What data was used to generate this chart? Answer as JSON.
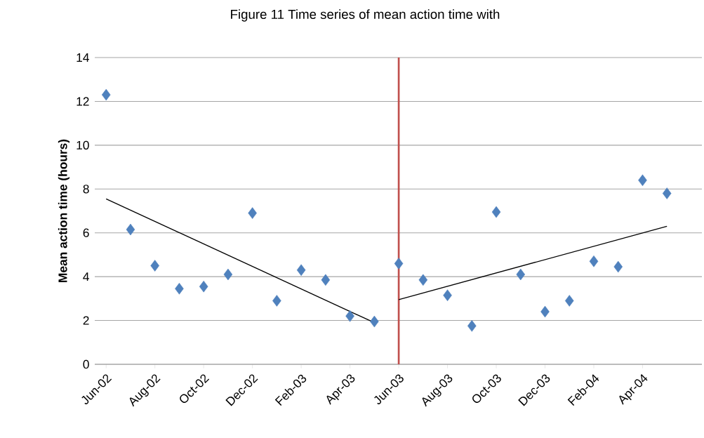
{
  "chart_data": {
    "type": "scatter",
    "title": "Figure 11          Time series of mean action time with",
    "ylabel": "Mean  action time (hours)",
    "ylim": [
      0,
      14
    ],
    "yticks": [
      0,
      2,
      4,
      6,
      8,
      10,
      12,
      14
    ],
    "xlim": [
      "2002-05-17",
      "2004-06-14"
    ],
    "xticks": [
      {
        "value": "2002-06",
        "label": "Jun-02"
      },
      {
        "value": "2002-08",
        "label": "Aug-02"
      },
      {
        "value": "2002-10",
        "label": "Oct-02"
      },
      {
        "value": "2002-12",
        "label": "Dec-02"
      },
      {
        "value": "2003-02",
        "label": "Feb-03"
      },
      {
        "value": "2003-04",
        "label": "Apr-03"
      },
      {
        "value": "2003-06",
        "label": "Jun-03"
      },
      {
        "value": "2003-08",
        "label": "Aug-03"
      },
      {
        "value": "2003-10",
        "label": "Oct-03"
      },
      {
        "value": "2003-12",
        "label": "Dec-03"
      },
      {
        "value": "2004-02",
        "label": "Feb-04"
      },
      {
        "value": "2004-04",
        "label": "Apr-04"
      }
    ],
    "grid": "y",
    "marker": "diamond",
    "ref_lines": [
      {
        "axis": "x",
        "value": "2003-06",
        "color": "#c0504d"
      }
    ],
    "series": [
      {
        "color": "#4f81bd",
        "x": [
          "2002-06",
          "2002-07",
          "2002-08",
          "2002-09",
          "2002-10",
          "2002-11",
          "2002-12",
          "2003-01",
          "2003-02",
          "2003-03",
          "2003-04",
          "2003-05",
          "2003-06",
          "2003-07",
          "2003-08",
          "2003-09",
          "2003-10",
          "2003-11",
          "2003-12",
          "2004-01",
          "2004-02",
          "2004-03",
          "2004-04",
          "2004-05"
        ],
        "values": [
          12.3,
          6.15,
          4.5,
          3.45,
          3.55,
          4.1,
          6.9,
          2.9,
          4.3,
          3.85,
          2.2,
          1.95,
          4.6,
          3.85,
          3.15,
          1.75,
          6.95,
          4.1,
          2.4,
          2.9,
          4.7,
          4.45,
          8.4,
          7.8
        ]
      },
      {
        "type": "line",
        "marker": "none",
        "color": "#000000",
        "x": [
          "2002-06",
          "2003-05"
        ],
        "values": [
          7.55,
          1.9
        ]
      },
      {
        "type": "line",
        "marker": "none",
        "color": "#000000",
        "x": [
          "2003-06",
          "2004-05"
        ],
        "values": [
          2.95,
          6.3
        ]
      }
    ]
  }
}
